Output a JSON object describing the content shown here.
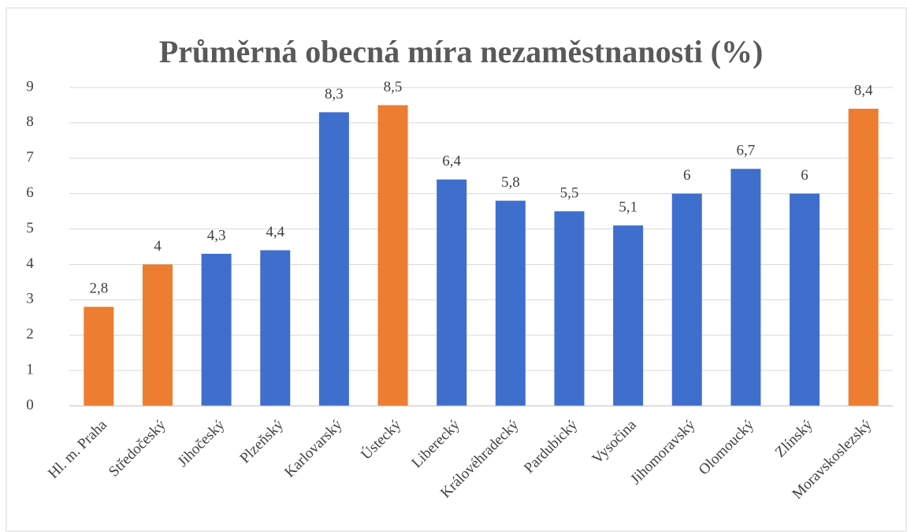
{
  "chart_data": {
    "type": "bar",
    "title": "Průměrná obecná míra nezaměstnanosti (%)",
    "categories": [
      "Hl. m. Praha",
      "Středočeský",
      "Jihočeský",
      "Plzeňský",
      "Karlovarský",
      "Ústecký",
      "Liberecký",
      "Královéhradecký",
      "Pardubický",
      "Vysočina",
      "Jihomoravský",
      "Olomoucký",
      "Zlínský",
      "Moravskoslezský"
    ],
    "values": [
      2.8,
      4,
      4.3,
      4.4,
      8.3,
      8.5,
      6.4,
      5.8,
      5.5,
      5.1,
      6,
      6.7,
      6,
      8.4
    ],
    "value_labels": [
      "2,8",
      "4",
      "4,3",
      "4,4",
      "8,3",
      "8,5",
      "6,4",
      "5,8",
      "5,5",
      "5,1",
      "6",
      "6,7",
      "6",
      "8,4"
    ],
    "colors": [
      "#ed7d31",
      "#ed7d31",
      "#3f6fcc",
      "#3f6fcc",
      "#3f6fcc",
      "#ed7d31",
      "#3f6fcc",
      "#3f6fcc",
      "#3f6fcc",
      "#3f6fcc",
      "#3f6fcc",
      "#3f6fcc",
      "#3f6fcc",
      "#ed7d31"
    ],
    "ylim": [
      0,
      9
    ],
    "yticks": [
      0,
      1,
      2,
      3,
      4,
      5,
      6,
      7,
      8,
      9
    ],
    "grid": true
  }
}
